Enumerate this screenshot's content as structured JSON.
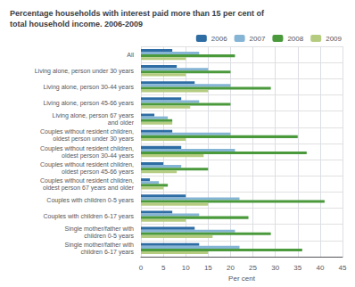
{
  "chart_data": {
    "type": "bar",
    "orientation": "horizontal",
    "title": "Percentage households with interest paid more than 15 per cent of\ntotal household income. 2006-2009",
    "xlabel": "Per cent",
    "categories": [
      "All",
      "Living alone, person under 30 years",
      "Living alone, person 30-44 years",
      "Living alone, person 45-66 years",
      "Living alone, person 67 years\nand older",
      "Couples without resident children,\noldest person under 30 years",
      "Couples without resident children,\noldest person 30-44 years",
      "Couples without resident children,\noldest person 45-66 years",
      "Couples without resident children,\noldest person 67 years and older",
      "Couples with children 0-5 years",
      "Couples with children 6-17 years",
      "Single mother/father with\nchildren 0-5 years",
      "Single mother/father with\nchildren 6-17 years"
    ],
    "series": [
      {
        "name": "2006",
        "color": "#2e6da4",
        "values": [
          7,
          8,
          12,
          9,
          3,
          7,
          9,
          5,
          2,
          10,
          7,
          12,
          13
        ]
      },
      {
        "name": "2007",
        "color": "#85b4d4",
        "values": [
          13,
          15,
          20,
          13,
          6,
          20,
          21,
          9,
          4,
          22,
          13,
          21,
          22
        ]
      },
      {
        "name": "2008",
        "color": "#4a9a3c",
        "values": [
          21,
          20,
          29,
          20,
          7,
          35,
          37,
          15,
          6,
          41,
          24,
          29,
          36
        ]
      },
      {
        "name": "2009",
        "color": "#b5cc80",
        "values": [
          10,
          10,
          15,
          11,
          7,
          10,
          14,
          8,
          5,
          15,
          10,
          16,
          15
        ]
      }
    ],
    "xlim": [
      0,
      45
    ],
    "xticks": [
      0,
      5,
      10,
      15,
      20,
      25,
      30,
      35,
      40,
      45
    ],
    "grid": true,
    "legend": "upper right"
  }
}
